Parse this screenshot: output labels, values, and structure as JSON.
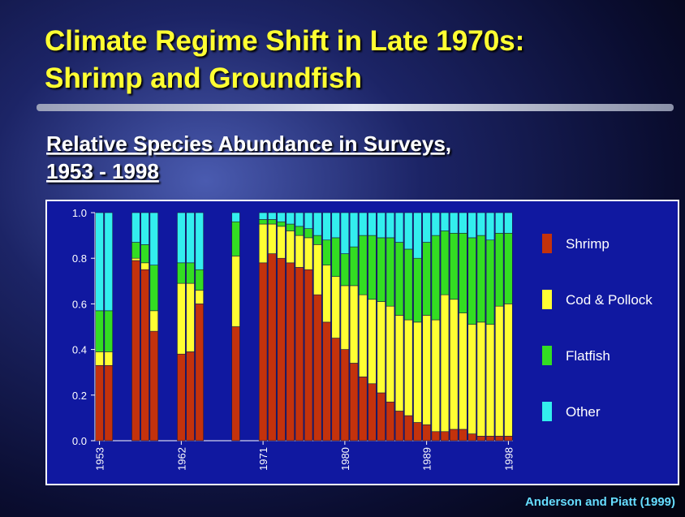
{
  "chart_data": {
    "type": "stacked_bar",
    "title_lines": [
      "Climate Regime Shift in Late 1970s:",
      "Shrimp and Groundfish"
    ],
    "subtitle_lines": [
      "Relative Species Abundance in Surveys,",
      "1953 - 1998"
    ],
    "source": "Anderson and Piatt (1999)",
    "x": [
      1953,
      1954,
      1957,
      1958,
      1959,
      1962,
      1963,
      1964,
      1968,
      1971,
      1972,
      1973,
      1974,
      1975,
      1976,
      1977,
      1978,
      1979,
      1980,
      1981,
      1982,
      1983,
      1984,
      1985,
      1986,
      1987,
      1988,
      1989,
      1990,
      1991,
      1992,
      1993,
      1994,
      1995,
      1996,
      1997,
      1998
    ],
    "xlim": [
      1952.5,
      1998.5
    ],
    "xticks": [
      1953,
      1962,
      1971,
      1980,
      1989,
      1998
    ],
    "ylim": [
      0,
      1
    ],
    "yticks": [
      {
        "value": 0,
        "label": "0.0"
      },
      0.2,
      0.4,
      0.6,
      0.8,
      {
        "value": 1,
        "label": "1.0"
      }
    ],
    "legend_position": "right",
    "series": [
      {
        "name": "Shrimp",
        "color": "#c4320c",
        "values": [
          0.33,
          0.33,
          0.79,
          0.75,
          0.48,
          0.38,
          0.39,
          0.6,
          0.5,
          0.78,
          0.82,
          0.8,
          0.78,
          0.76,
          0.75,
          0.64,
          0.52,
          0.45,
          0.4,
          0.34,
          0.28,
          0.25,
          0.21,
          0.17,
          0.13,
          0.11,
          0.08,
          0.07,
          0.04,
          0.04,
          0.05,
          0.05,
          0.03,
          0.02,
          0.02,
          0.02,
          0.02
        ]
      },
      {
        "name": "Cod & Pollock",
        "color": "#ffff33",
        "values": [
          0.06,
          0.06,
          0.01,
          0.03,
          0.09,
          0.31,
          0.3,
          0.06,
          0.31,
          0.17,
          0.13,
          0.14,
          0.14,
          0.14,
          0.14,
          0.22,
          0.25,
          0.27,
          0.28,
          0.34,
          0.36,
          0.37,
          0.4,
          0.42,
          0.42,
          0.42,
          0.44,
          0.48,
          0.49,
          0.6,
          0.57,
          0.51,
          0.48,
          0.5,
          0.49,
          0.57,
          0.58
        ]
      },
      {
        "name": "Flatfish",
        "color": "#33dd22",
        "values": [
          0.18,
          0.18,
          0.07,
          0.08,
          0.2,
          0.09,
          0.09,
          0.09,
          0.15,
          0.02,
          0.02,
          0.02,
          0.03,
          0.04,
          0.04,
          0.04,
          0.11,
          0.17,
          0.14,
          0.17,
          0.26,
          0.28,
          0.28,
          0.3,
          0.32,
          0.31,
          0.28,
          0.32,
          0.37,
          0.28,
          0.29,
          0.35,
          0.38,
          0.38,
          0.37,
          0.32,
          0.31
        ]
      },
      {
        "name": "Other",
        "color": "#33eeee",
        "values": [
          0.43,
          0.43,
          0.13,
          0.14,
          0.23,
          0.22,
          0.22,
          0.25,
          0.04,
          0.03,
          0.03,
          0.04,
          0.05,
          0.06,
          0.07,
          0.1,
          0.12,
          0.11,
          0.18,
          0.15,
          0.1,
          0.1,
          0.11,
          0.11,
          0.13,
          0.16,
          0.2,
          0.13,
          0.1,
          0.08,
          0.09,
          0.09,
          0.11,
          0.1,
          0.12,
          0.09,
          0.09
        ]
      }
    ]
  }
}
